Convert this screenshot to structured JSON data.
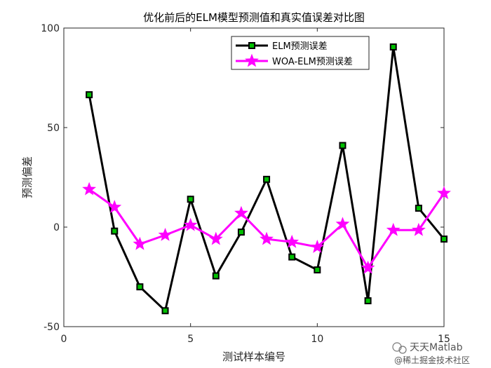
{
  "chart_data": {
    "type": "line",
    "title": "优化前后的ELM模型预测值和真实值误差对比图",
    "xlabel": "测试样本编号",
    "ylabel": "预测偏差",
    "xlim": [
      0,
      15
    ],
    "ylim": [
      -50,
      100
    ],
    "xticks": [
      0,
      5,
      10,
      15
    ],
    "yticks": [
      -50,
      0,
      50,
      100
    ],
    "x": [
      1,
      2,
      3,
      4,
      5,
      6,
      7,
      8,
      9,
      10,
      11,
      12,
      13,
      14,
      15
    ],
    "series": [
      {
        "name": "ELM预测误差",
        "color": "#000000",
        "marker_color": "#00c000",
        "marker": "square",
        "values": [
          66.5,
          -2,
          -30,
          -42,
          14,
          -24.5,
          -2.5,
          24,
          -15,
          -21.5,
          41,
          -37,
          90.5,
          9.5,
          -6
        ]
      },
      {
        "name": "WOA-ELM预测误差",
        "color": "#ff00ff",
        "marker": "star",
        "values": [
          19,
          10,
          -8.5,
          -4,
          1,
          -6,
          7,
          -6,
          -7.5,
          -10,
          1.5,
          -20.5,
          -1.5,
          -1.5,
          17
        ]
      }
    ],
    "grid": false,
    "legend_position": "top-right"
  },
  "watermark": {
    "line1": "天天Matlab",
    "line2": "@稀土掘金技术社区"
  }
}
